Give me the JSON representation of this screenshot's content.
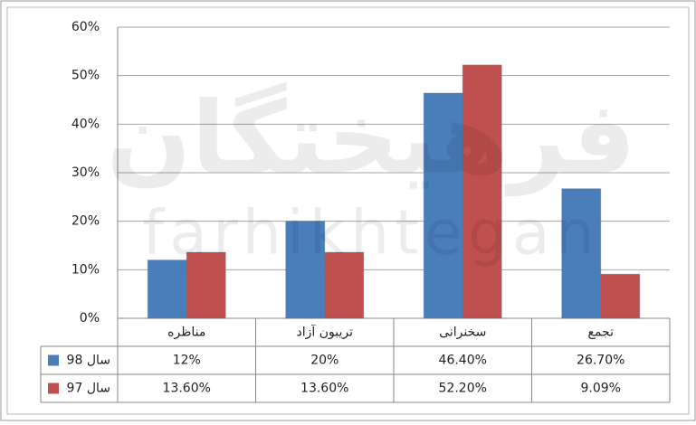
{
  "chart_data": {
    "type": "bar",
    "categories": [
      "مناظره",
      "تریبون آزاد",
      "سخنرانی",
      "تجمع"
    ],
    "series": [
      {
        "name": "سال 98",
        "color": "#4a7ebb",
        "values": [
          12,
          20,
          46.4,
          26.7
        ],
        "value_labels": [
          "12%",
          "20%",
          "46.40%",
          "26.70%"
        ]
      },
      {
        "name": "سال 97",
        "color": "#c0504d",
        "values": [
          13.6,
          13.6,
          52.2,
          9.09
        ],
        "value_labels": [
          "13.60%",
          "13.60%",
          "52.20%",
          "9.09%"
        ]
      }
    ],
    "ylim": [
      0,
      60
    ],
    "yticks": [
      {
        "value": 0,
        "label": "0%"
      },
      {
        "value": 10,
        "label": "10%"
      },
      {
        "value": 20,
        "label": "20%"
      },
      {
        "value": 30,
        "label": "30%"
      },
      {
        "value": 40,
        "label": "40%"
      },
      {
        "value": 50,
        "label": "50%"
      },
      {
        "value": 60,
        "label": "60%"
      }
    ],
    "grid": true,
    "watermark": [
      "فرهیختگان",
      "farhikhtegan"
    ]
  }
}
